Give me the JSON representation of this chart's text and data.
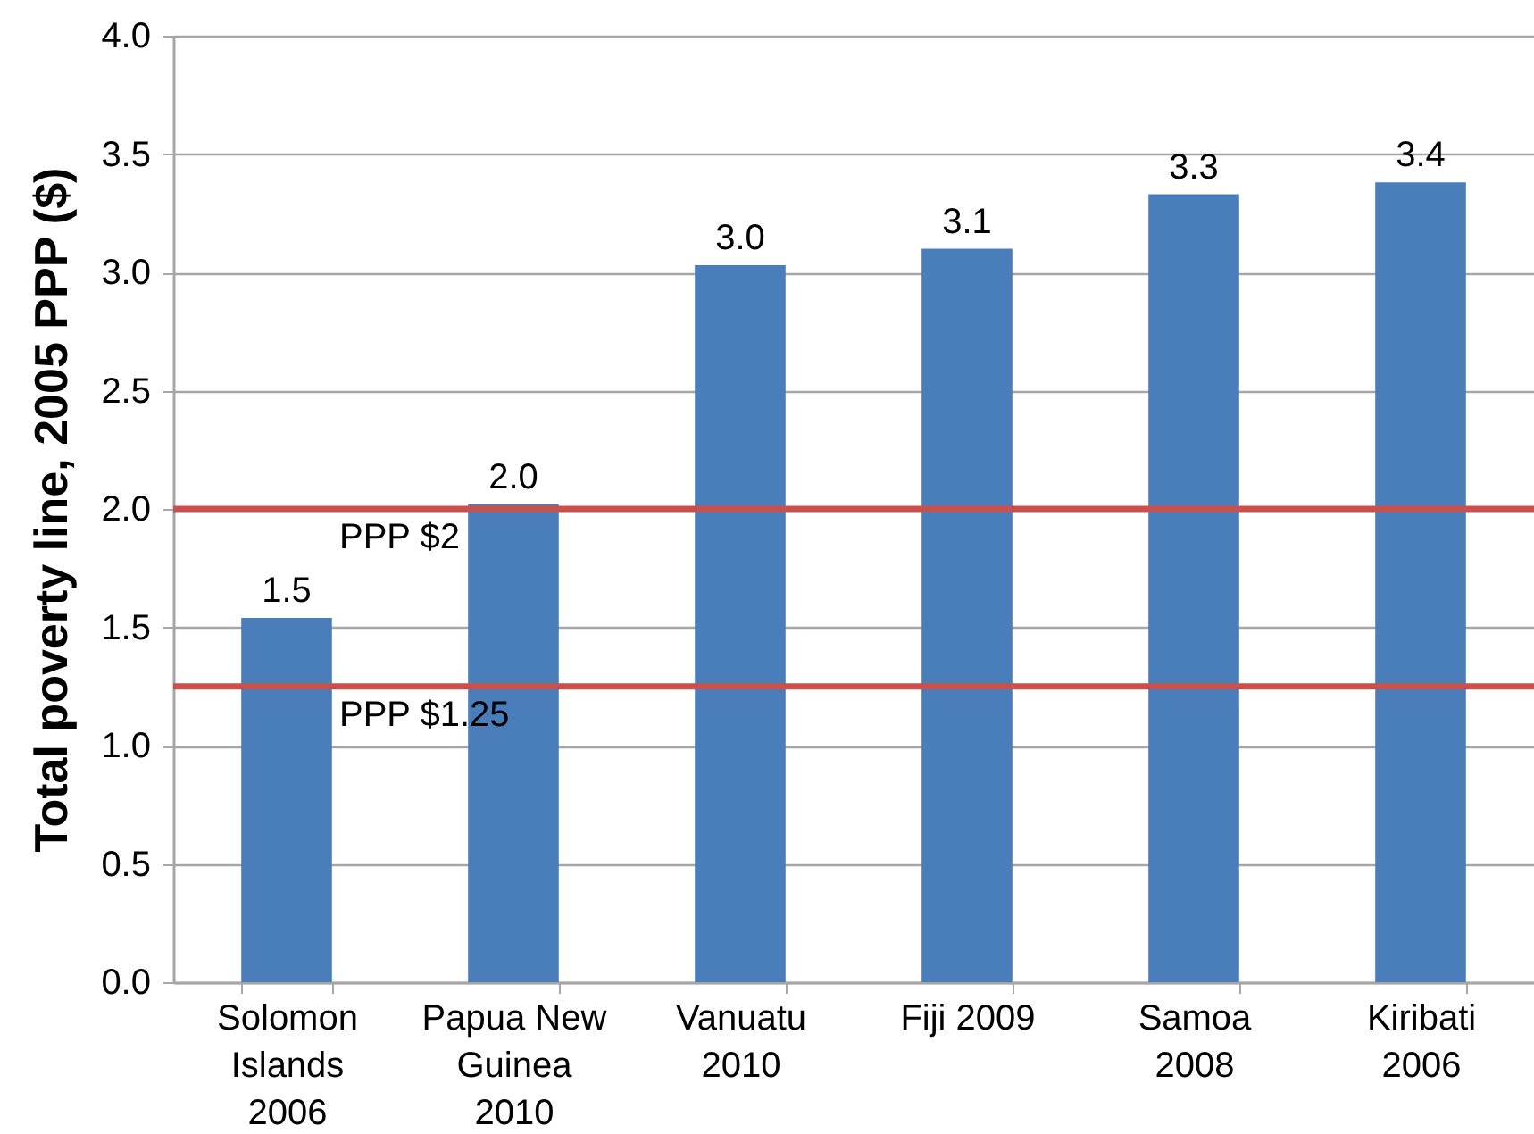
{
  "chart_data": {
    "type": "bar",
    "ylabel": "Total poverty line, 2005 PPP ($)",
    "categories": [
      "Solomon\nIslands\n2006",
      "Papua New\nGuinea\n2010",
      "Vanuatu\n2010",
      "Fiji 2009",
      "Samoa\n2008",
      "Kiribati\n2006"
    ],
    "values": [
      1.54,
      2.02,
      3.03,
      3.1,
      3.33,
      3.38
    ],
    "value_labels": [
      "1.5",
      "2.0",
      "3.0",
      "3.1",
      "3.3",
      "3.4"
    ],
    "color": "#4a7ebb",
    "ylim": [
      0,
      4
    ],
    "yticks": [
      {
        "value": 0,
        "label": "0.0"
      },
      {
        "value": 0.5,
        "label": "0.5"
      },
      {
        "value": 1,
        "label": "1.0"
      },
      {
        "value": 1.5,
        "label": "1.5"
      },
      {
        "value": 2,
        "label": "2.0"
      },
      {
        "value": 2.5,
        "label": "2.5"
      },
      {
        "value": 3,
        "label": "3.0"
      },
      {
        "value": 3.5,
        "label": "3.5"
      },
      {
        "value": 4,
        "label": "4.0"
      }
    ],
    "grid": "y",
    "ref_lines": [
      {
        "axis": "y",
        "value": 2,
        "label": "PPP $2",
        "color": "#c9504d"
      },
      {
        "axis": "y",
        "value": 1.25,
        "label": "PPP $1.25",
        "color": "#c9504d"
      }
    ]
  }
}
